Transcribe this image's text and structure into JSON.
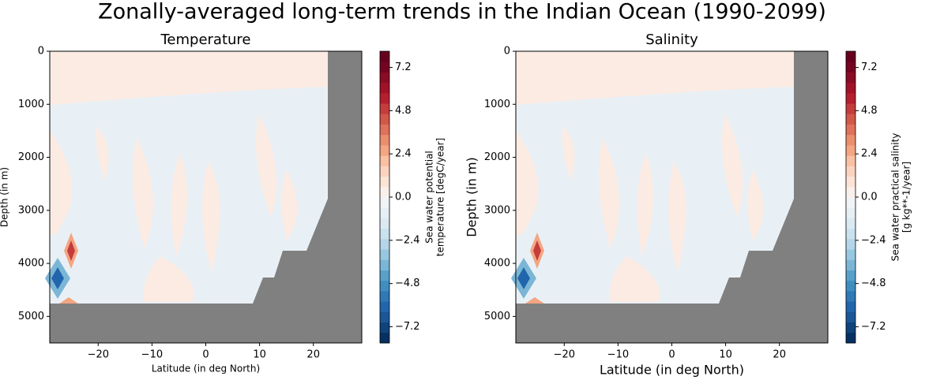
{
  "title": "Zonally-averaged long-term trends in the Indian Ocean (1990-2099)",
  "chart_data": [
    {
      "type": "contour",
      "title": "Temperature",
      "x_label": "Latitude (in deg North)",
      "y_label": "Depth (in m)",
      "xlim": [
        -29,
        29
      ],
      "xticks": [
        {
          "value": -20,
          "label": "−20"
        },
        {
          "value": -10,
          "label": "−10"
        },
        0,
        10,
        20
      ],
      "ylim": [
        5500,
        0
      ],
      "yticks": [
        0,
        1000,
        2000,
        3000,
        4000,
        5000
      ],
      "colorbar": {
        "label": [
          "Sea water potential",
          "temperature [degC/year]"
        ],
        "lim": [
          -8.1,
          8.1
        ],
        "ticks": [
          7.2,
          4.8,
          2.4,
          {
            "value": 0,
            "label": "0.0"
          },
          {
            "value": -2.4,
            "label": "−2.4"
          },
          {
            "value": -4.8,
            "label": "−4.8"
          },
          {
            "value": -7.2,
            "label": "−7.2"
          }
        ],
        "colors": [
          "#053061",
          "#0f437b",
          "#1b5796",
          "#2166ac",
          "#2f79b5",
          "#3f8ec0",
          "#5aa1ca",
          "#7bb6d6",
          "#98c8e0",
          "#b4d6e8",
          "#cae1ee",
          "#dbeaf2",
          "#e6eff4",
          "#f0f4f6",
          "#faf0eb",
          "#fbe4d6",
          "#fcd3bf",
          "#f9c0a3",
          "#f4a582",
          "#ea8e6e",
          "#de725b",
          "#d25849",
          "#c43c3c",
          "#b61f2e",
          "#a11228",
          "#8a0b24",
          "#740422",
          "#67001f"
        ]
      }
    },
    {
      "type": "contour",
      "title": "Salinity",
      "x_label": "Latitude (in deg North)",
      "y_label": "Depth (in m)",
      "xlim": [
        -29,
        29
      ],
      "xticks": [
        {
          "value": -20,
          "label": "−20"
        },
        {
          "value": -10,
          "label": "−10"
        },
        0,
        10,
        20
      ],
      "ylim": [
        5500,
        0
      ],
      "yticks": [
        0,
        1000,
        2000,
        3000,
        4000,
        5000
      ],
      "colorbar": {
        "label": [
          "Sea water practical salinity",
          "[g kg**-1/year]"
        ],
        "lim": [
          -8.1,
          8.1
        ],
        "ticks": [
          7.2,
          4.8,
          2.4,
          {
            "value": 0,
            "label": "0.0"
          },
          {
            "value": -2.4,
            "label": "−2.4"
          },
          {
            "value": -4.8,
            "label": "−4.8"
          },
          {
            "value": -7.2,
            "label": "−7.2"
          }
        ],
        "colors": [
          "#053061",
          "#0f437b",
          "#1b5796",
          "#2166ac",
          "#2f79b5",
          "#3f8ec0",
          "#5aa1ca",
          "#7bb6d6",
          "#98c8e0",
          "#b4d6e8",
          "#cae1ee",
          "#dbeaf2",
          "#e6eff4",
          "#f0f4f6",
          "#faf0eb",
          "#fbe4d6",
          "#fcd3bf",
          "#f9c0a3",
          "#f4a582",
          "#ea8e6e",
          "#de725b",
          "#d25849",
          "#c43c3c",
          "#b61f2e",
          "#a11228",
          "#8a0b24",
          "#740422",
          "#67001f"
        ]
      }
    }
  ]
}
